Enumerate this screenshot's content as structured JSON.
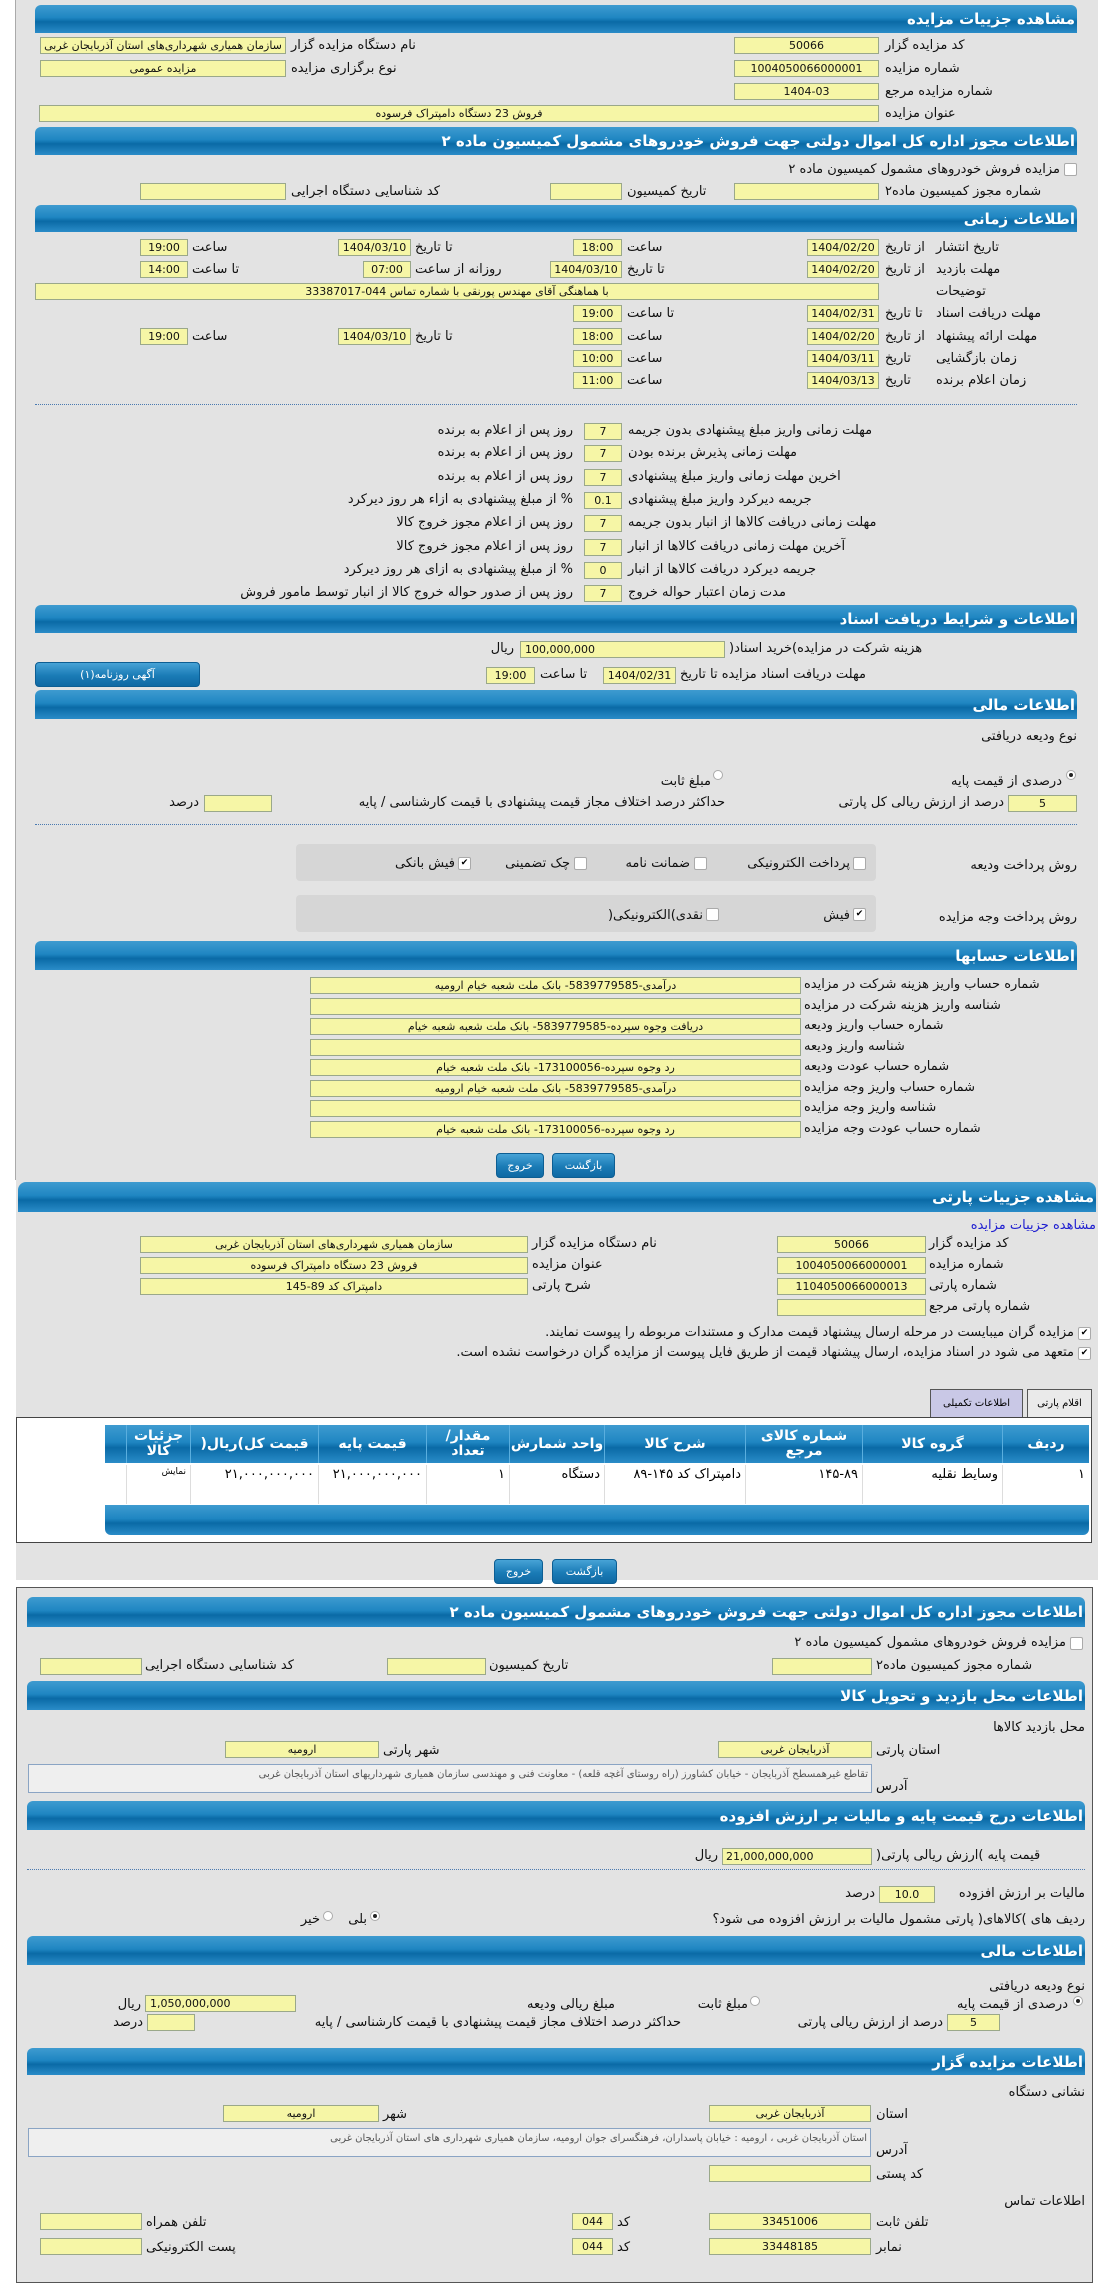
{
  "auction": {
    "title": "مشاهده جزییات مزایده",
    "code_label": "کد مزایده گزار",
    "code": "50066",
    "org_label": "نام دستگاه مزایده گزار",
    "org": "سازمان همیاری شهرداری‌های استان آذربایجان غربی",
    "number_label": "شماره مزایده",
    "number": "1004050066000001",
    "type_label": "نوع برگزاری مزایده",
    "type": "مزایده عمومی",
    "ref_label": "شماره مزایده مرجع",
    "ref": "1404-03",
    "subject_label": "عنوان مزایده",
    "subject": "فروش  23 دستگاه دامپتراک فرسوده"
  },
  "permit": {
    "title": "اطلاعات مجوز اداره کل اموال دولتی جهت فروش خودروهای مشمول کمیسیون ماده ۲",
    "checkbox_label": "مزایده فروش خودروهای مشمول کمیسیون ماده ۲",
    "checked": false,
    "permit_no_label": "شماره مجوز کمیسیون ماده۲",
    "permit_no": "",
    "date_label": "تاریخ کمیسیون",
    "date": "",
    "exec_code_label": "کد شناسایی دستگاه اجرایی",
    "exec_code": ""
  },
  "timing": {
    "title": "اطلاعات زمانی",
    "from_date": "از تاریخ",
    "to_date": "تا تاریخ",
    "date": "تاریخ",
    "hour": "ساعت",
    "to_hour": "تا ساعت",
    "daily_from": "روزانه از ساعت",
    "publish": {
      "label": "تاریخ انتشار",
      "from": "1404/02/20",
      "from_time": "18:00",
      "to": "1404/03/10",
      "to_time": "19:00"
    },
    "visit": {
      "label": "مهلت بازدید",
      "from": "1404/02/20",
      "to": "1404/03/10",
      "daily_from": "07:00",
      "daily_to": "14:00"
    },
    "notes": {
      "label": "توضیحات",
      "value": "با هماهنگی آقای مهندس پورنقی با شماره تماس 044-33387017"
    },
    "docs": {
      "label": "مهلت دریافت اسناد",
      "to": "1404/02/31",
      "to_time": "19:00"
    },
    "offer": {
      "label": "مهلت ارائه پیشنهاد",
      "from": "1404/02/20",
      "from_time": "18:00",
      "to": "1404/03/10",
      "to_time": "19:00"
    },
    "opening": {
      "label": "زمان بازگشایی",
      "date": "1404/03/11",
      "time": "10:00"
    },
    "winner": {
      "label": "زمان اعلام برنده",
      "date": "1404/03/13",
      "time": "11:00"
    }
  },
  "terms": [
    {
      "label": "مهلت زمانی واریز مبلغ پیشنهادی بدون جریمه",
      "value": "7",
      "suffix": "روز پس از اعلام به برنده"
    },
    {
      "label": "مهلت زمانی پذیرش برنده بودن",
      "value": "7",
      "suffix": "روز پس از اعلام به برنده"
    },
    {
      "label": "اخرین مهلت زمانی واریز مبلغ پیشنهادی",
      "value": "7",
      "suffix": "روز پس از اعلام به برنده"
    },
    {
      "label": "جریمه دیرکرد واریز مبلغ پیشنهادی",
      "value": "0.1",
      "suffix": "% از مبلغ پیشنهادی به ازاء هر روز دیرکرد"
    },
    {
      "label": "مهلت زمانی دریافت کالاها از انبار بدون جریمه",
      "value": "7",
      "suffix": "روز پس از اعلام مجوز خروج کالا"
    },
    {
      "label": "آخرین مهلت زمانی دریافت کالاها از انبار",
      "value": "7",
      "suffix": "روز پس از اعلام مجوز خروج کالا"
    },
    {
      "label": "جریمه دیرکرد دریافت کالاها از انبار",
      "value": "0",
      "suffix": "% از مبلغ پیشنهادی به ازای هر روز دیرکرد"
    },
    {
      "label": "مدت زمان اعتبار حواله خروج",
      "value": "7",
      "suffix": "روز پس از صدور حواله خروج کالا از انبار توسط مامور فروش"
    }
  ],
  "documents": {
    "title": "اطلاعات و شرایط دریافت اسناد",
    "fee_label": "هزینه شرکت در مزایده)خرید اسناد(",
    "fee": "100,000,000",
    "currency": "ریال",
    "deadline_label": "مهلت دریافت اسناد مزایده تا تاریخ",
    "deadline_date": "1404/02/31",
    "to_hour": "تا ساعت",
    "deadline_time": "19:00",
    "ad_button": "آگهی روزنامه(۱)"
  },
  "finance": {
    "title": "اطلاعات مالی",
    "deposit_type": "نوع ودیعه دریافتی",
    "percent_option": "درصدی از قیمت پایه",
    "fixed_option": "مبلغ ثابت",
    "selected": "percent",
    "percent": "5",
    "percent_label": "درصد از ارزش ریالی کل پارتی",
    "max_diff_label": "حداکثر درصد اختلاف مجاز قیمت پیشنهادی با قیمت کارشناسی / پایه",
    "max_diff": "",
    "percent_unit": "درصد",
    "deposit_method_label": "روش پرداخت ودیعه",
    "deposit_methods": [
      {
        "label": "پرداخت الکترونیکی",
        "checked": false
      },
      {
        "label": "ضمانت نامه",
        "checked": false
      },
      {
        "label": "چک تضمینی",
        "checked": false
      },
      {
        "label": "فیش بانکی",
        "checked": true
      }
    ],
    "payment_method_label": "روش پرداخت وجه مزایده",
    "payment_methods": [
      {
        "label": "فیش",
        "checked": true
      },
      {
        "label": "نقدی)الکترونیکی(",
        "checked": false
      }
    ]
  },
  "accounts": {
    "title": "اطلاعات حسابها",
    "rows": [
      {
        "label": "شماره حساب واریز هزینه شرکت در مزایده",
        "value": "درآمدی-5839779585- بانک ملت شعبه خیام ارومیه"
      },
      {
        "label": "شناسه واریز هزینه شرکت در مزایده",
        "value": ""
      },
      {
        "label": "شماره حساب واریز ودیعه",
        "value": "دریافت وجوه سپرده-5839779585- بانک ملت شعبه شعبه خیام"
      },
      {
        "label": "شناسه واریز ودیعه",
        "value": ""
      },
      {
        "label": "شماره حساب عودت ودیعه",
        "value": "رد وجوه سپرده-173100056- بانک ملت شعبه خیام"
      },
      {
        "label": "شماره حساب واریز وجه مزایده",
        "value": "درآمدی-5839779585- بانک ملت شعبه خیام ارومیه"
      },
      {
        "label": "شناسه واریز وجه مزایده",
        "value": ""
      },
      {
        "label": "شماره حساب عودت وجه مزایده",
        "value": "رد وجوه سپرده-173100056- بانک ملت شعبه خیام"
      }
    ]
  },
  "buttons": {
    "back": "بازگشت",
    "exit": "خروج"
  },
  "lot": {
    "title": "مشاهده جزییات پارتی",
    "auction_link": "مشاهده جزییات مزایده",
    "code_label": "کد مزایده گزار",
    "code": "50066",
    "org_label": "نام دستگاه مزایده گزار",
    "org": "سازمان همیاری شهرداری‌های استان آذربایجان غربی",
    "number_label": "شماره مزایده",
    "number": "1004050066000001",
    "subject_label": "عنوان مزایده",
    "subject": "فروش  23 دستگاه دامپتراک فرسوده",
    "lot_no_label": "شماره پارتی",
    "lot_no": "1104050066000013",
    "desc_label": "شرح پارتی",
    "desc": "دامپتراک کد 89-145",
    "lot_ref_label": "شماره پارتی مرجع",
    "lot_ref": "",
    "check1": "مزایده گران میبایست در مرحله ارسال پیشنهاد قیمت مدارک و مستندات مربوطه را پیوست نمایند.",
    "check2": "متعهد می شود در اسناد مزایده، ارسال پیشنهاد قیمت از طریق فایل پیوست از مزایده گران درخواست نشده است."
  },
  "tabs": [
    {
      "label": "اقلام پارتی",
      "active": true
    },
    {
      "label": "اطلاعات تکمیلی",
      "active": false
    }
  ],
  "items_table": {
    "headers": [
      "ردیف",
      "گروه کالا",
      "شماره کالای مرجع",
      "شرح کالا",
      "واحد شمارش",
      "مقدار/ تعداد",
      "قیمت پایه",
      "قیمت کل)ریال(",
      "جزئیات کالا"
    ],
    "rows": [
      [
        "۱",
        "وسایط نقلیه",
        "۱۴۵-۸۹",
        "دامپتراک کد ۱۴۵-۸۹",
        "دستگاه",
        "۱",
        "۲۱,۰۰۰,۰۰۰,۰۰۰",
        "۲۱,۰۰۰,۰۰۰,۰۰۰",
        "نمایش"
      ]
    ]
  },
  "permit2": {
    "title": "اطلاعات مجوز اداره کل اموال دولتی جهت فروش خودروهای مشمول کمیسیون ماده ۲",
    "checkbox_label": "مزایده فروش خودروهای مشمول کمیسیون ماده ۲",
    "permit_no_label": "شماره مجوز کمیسیون ماده۲",
    "date_label": "تاریخ کمیسیون",
    "exec_code_label": "کد شناسایی دستگاه اجرایی"
  },
  "visit_place": {
    "title": "اطلاعات محل بازدید و تحویل کالا",
    "subtitle": "محل بازدید کالاها",
    "province_label": "استان پارتی",
    "province": "آذربایجان غربی",
    "city_label": "شهر پارتی",
    "city": "ارومیه",
    "address_label": "آدرس",
    "address": "تقاطع غیرهمسطح آذربایجان - خیابان کشاورز (راه روستای آغچه قلعه) - معاونت فنی و مهندسی سازمان همیاری شهرداریهای استان آذربایجان غربی"
  },
  "pricing": {
    "title": "اطلاعات درج قیمت پایه و مالیات بر ارزش افزوده",
    "base_label": "قیمت پایه )ارزش ریالی پارتی(",
    "base": "21,000,000,000",
    "currency": "ریال",
    "vat_label": "مالیات بر ارزش افزوده",
    "vat": "10.0",
    "vat_unit": "درصد",
    "vat_q": "ردیف های )کالاهای( پارتی مشمول مالیات بر ارزش افزوده می شود؟",
    "yes": "بلی",
    "no": "خیر",
    "vat_applies": true
  },
  "finance2": {
    "title": "اطلاعات مالی",
    "deposit_type": "نوع ودیعه دریافتی",
    "percent_option": "درصدی از قیمت پایه",
    "fixed_option": "مبلغ ثابت",
    "amount_label": "مبلغ ریالی ودیعه",
    "amount": "1,050,000,000",
    "currency": "ریال",
    "percent": "5",
    "percent_label": "درصد از ارزش ریالی پارتی",
    "max_diff_label": "حداکثر درصد اختلاف مجاز قیمت پیشنهادی با قیمت کارشناسی / پایه",
    "max_diff": "",
    "percent_unit": "درصد"
  },
  "auctioneer": {
    "title": "اطلاعات مزایده گزار",
    "address_title": "نشانی دستگاه",
    "province_label": "استان",
    "province": "آذربایجان غربی",
    "city_label": "شهر",
    "city": "ارومیه",
    "address_label": "آدرس",
    "address": "استان آذربایجان غربی ، ارومیه : خیابان پاسداران، فرهنگسرای جوان ارومیه، سازمان همیاری شهرداری های استان آذربایجان غربی",
    "postal_label": "کد پستی",
    "postal": "",
    "contact_title": "اطلاعات تماس",
    "phone_label": "تلفن ثابت",
    "phone": "33451006",
    "code_label": "کد",
    "phone_code": "044",
    "mobile_label": "تلفن همراه",
    "mobile": "",
    "fax_label": "نمابر",
    "fax": "33448185",
    "fax_code": "044",
    "email_label": "پست الکترونیکی",
    "email": ""
  },
  "colors": {
    "header": "#1f86c2",
    "field": "#f6f6a6",
    "background": "#e3e3e3"
  }
}
